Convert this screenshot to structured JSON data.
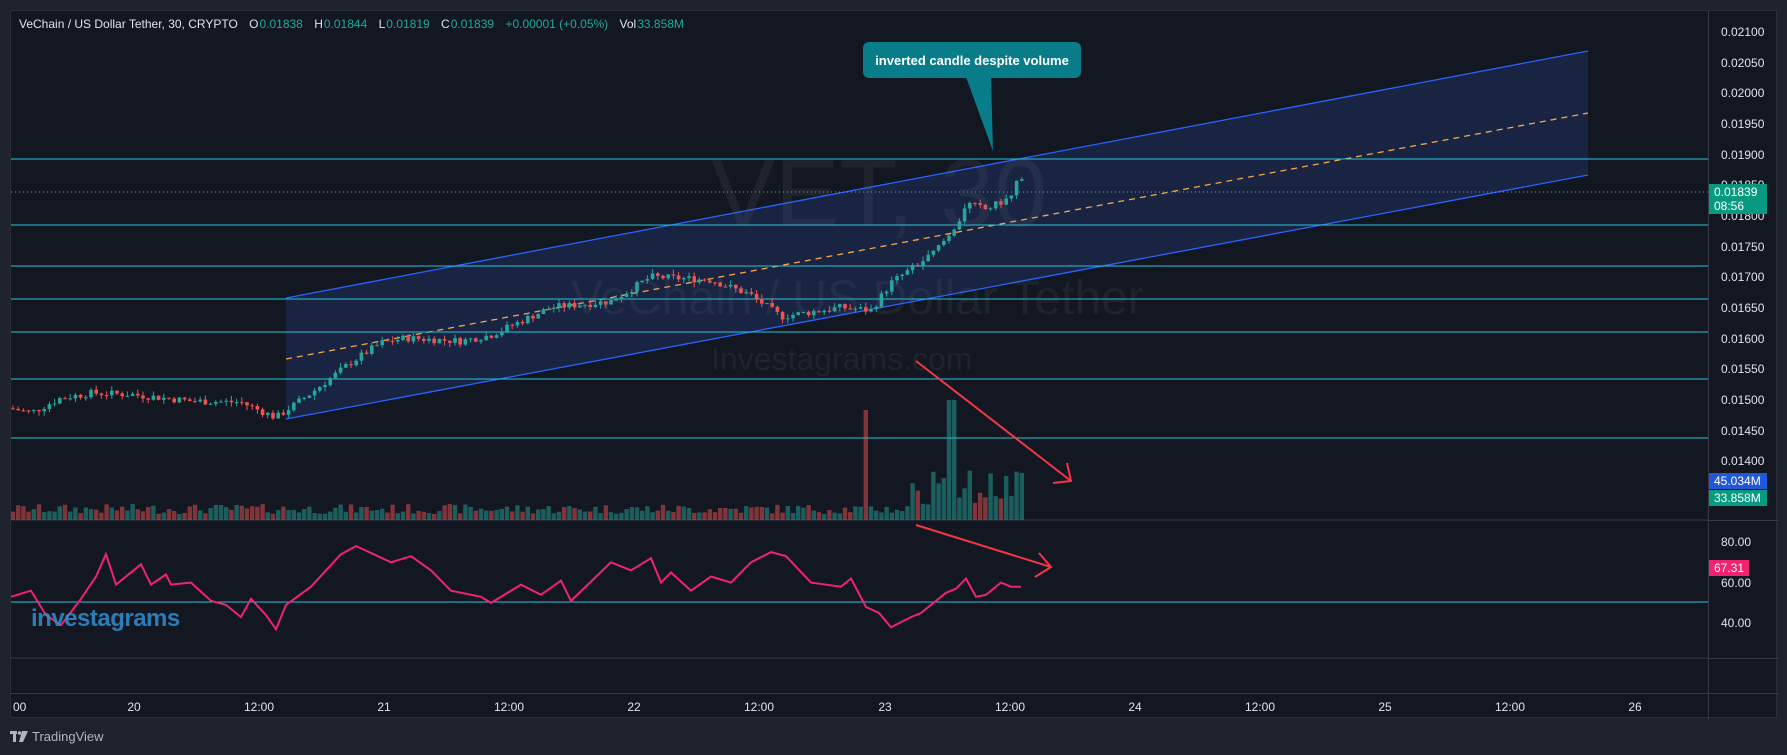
{
  "legend": {
    "symbol": "VeChain / US Dollar Tether, 30, CRYPTO",
    "open_label": "O",
    "open": "0.01838",
    "high_label": "H",
    "high": "0.01844",
    "low_label": "L",
    "low": "0.01819",
    "close_label": "C",
    "close": "0.01839",
    "change": "+0.00001 (+0.05%)",
    "vol_label": "Vol",
    "vol": "33.858M"
  },
  "watermark": {
    "ticker": "VET, 30",
    "name": "VeChain / US Dollar Tether",
    "site": "Investagrams.com",
    "logo": "investagrams"
  },
  "annotation": {
    "text": "inverted candle despite volume"
  },
  "price_axis": {
    "ticks": [
      "0.02100",
      "0.02050",
      "0.02000",
      "0.01950",
      "0.01900",
      "0.01850",
      "0.01800",
      "0.01750",
      "0.01700",
      "0.01650",
      "0.01600",
      "0.01550",
      "0.01500",
      "0.01450",
      "0.01400"
    ],
    "last_price": "0.01839",
    "countdown": "08:56",
    "vol_ma_badge": "45.034M",
    "vol_badge": "33.858M"
  },
  "rsi_axis": {
    "ticks": [
      "80.00",
      "60.00",
      "40.00"
    ],
    "value": "67.31"
  },
  "time_axis": {
    "ticks": [
      "00",
      "20",
      "12:00",
      "21",
      "12:00",
      "22",
      "12:00",
      "23",
      "12:00",
      "24",
      "12:00",
      "25",
      "12:00",
      "26"
    ]
  },
  "footer": {
    "brand": "TradingView"
  },
  "colors": {
    "up": "#26a69a",
    "down": "#ef5350",
    "channel": "#2962ff",
    "channel_fill": "#1b2a4e",
    "midline": "#f7a64a",
    "hline": "#26c6da",
    "rsi": "#f0246e",
    "arrow": "#f23645",
    "last_price_bg": "#089981",
    "vol_ma_bg": "#2157d9",
    "rsi_badge_bg": "#f0246e",
    "callout_bg": "#097c89"
  },
  "chart_data": {
    "type": "candlestick",
    "title": "VeChain / US Dollar Tether, 30, CRYPTO",
    "ohlc_last": {
      "open": 0.01838,
      "high": 0.01844,
      "low": 0.01819,
      "close": 0.01839
    },
    "x_ticks": [
      "00",
      "20",
      "12:00",
      "21",
      "12:00",
      "22",
      "12:00",
      "23",
      "12:00",
      "24",
      "12:00",
      "25",
      "12:00",
      "26"
    ],
    "ylim": [
      0.0137,
      0.0212
    ],
    "horizontal_levels": [
      0.01895,
      0.0179,
      0.0172,
      0.01665,
      0.0161,
      0.01535,
      0.0144
    ],
    "approx_price_path": {
      "x": [
        "19 18:00",
        "20 00:00",
        "20 06:00",
        "20 12:00",
        "20 14:00",
        "21 00:00",
        "21 06:00",
        "21 12:00",
        "21 18:00",
        "22 00:00",
        "22 06:00",
        "22 12:00",
        "22 18:00",
        "23 00:00",
        "23 06:00",
        "23 08:00",
        "23 12:00"
      ],
      "close": [
        0.01485,
        0.0149,
        0.01505,
        0.0149,
        0.0147,
        0.0159,
        0.016,
        0.01595,
        0.0164,
        0.017,
        0.0169,
        0.01645,
        0.0165,
        0.0166,
        0.0176,
        0.01845,
        0.01839
      ]
    },
    "rsi": {
      "period_levels": [
        80,
        60,
        40
      ],
      "last": 67.31,
      "ylim": [
        25,
        90
      ]
    },
    "volume": {
      "last": "33.858M",
      "ma": "45.034M"
    },
    "annotations": [
      "inverted candle despite volume"
    ]
  }
}
